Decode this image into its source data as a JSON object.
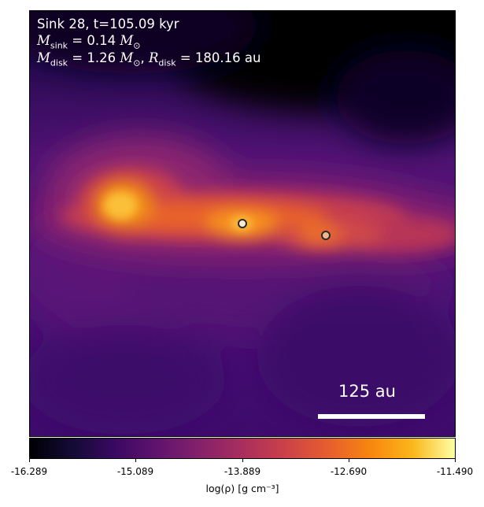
{
  "annotation": {
    "line1": "Sink 28, t=105.09 kyr",
    "m_sink_symbol": "M",
    "m_sink_sub": "sink",
    "m_sink_value": " = 0.14 ",
    "m_sun_symbol": "M",
    "m_sun_sub": "⊙",
    "m_disk_symbol": "M",
    "m_disk_sub": "disk",
    "m_disk_value": " = 1.26 ",
    "r_disk_symbol": "R",
    "r_disk_sub": "disk",
    "r_disk_value": " = 180.16 au"
  },
  "scalebar": {
    "label": "125 au"
  },
  "colorbar": {
    "colormap": "inferno",
    "min": -16.289,
    "max": -11.49,
    "ticks": [
      "-16.289",
      "-15.089",
      "-13.889",
      "-12.690",
      "-11.490"
    ],
    "label": "log(ρ) [g cm⁻³]"
  },
  "sinks": [
    {
      "id": "primary",
      "color": "#f6ead8"
    },
    {
      "id": "secondary",
      "color": "#f0b58f"
    }
  ]
}
